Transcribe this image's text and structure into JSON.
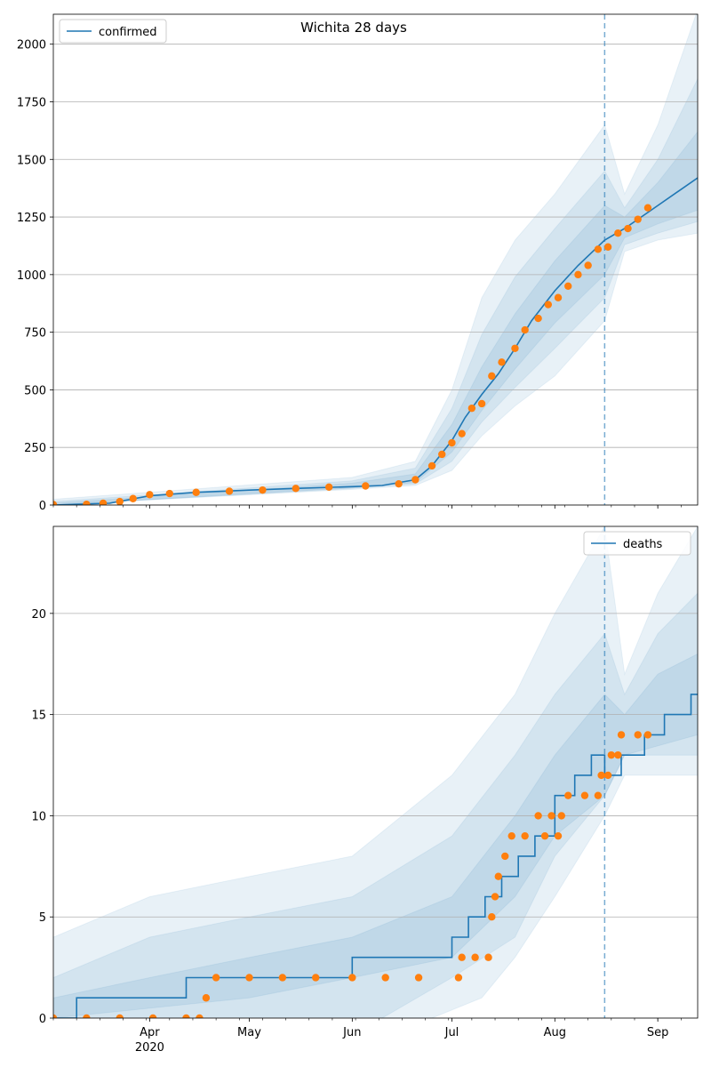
{
  "colors": {
    "model": "#1f77b4",
    "observed": "#ff7f0e",
    "grid": "#b0b0b0"
  },
  "chart_data": [
    {
      "type": "line",
      "title": "Wichita 28 days",
      "legend": {
        "label": "confirmed",
        "position": "top-left"
      },
      "xlim": [
        "2020-03-03",
        "2020-09-13"
      ],
      "ylim": [
        0,
        2130
      ],
      "yticks": [
        0,
        250,
        500,
        750,
        1000,
        1250,
        1500,
        1750,
        2000
      ],
      "xticks": [
        {
          "date": "2020-04-01",
          "label": "Apr",
          "sublabel": "2020"
        },
        {
          "date": "2020-05-01",
          "label": "May",
          "sublabel": ""
        },
        {
          "date": "2020-06-01",
          "label": "Jun",
          "sublabel": ""
        },
        {
          "date": "2020-07-01",
          "label": "Jul",
          "sublabel": ""
        },
        {
          "date": "2020-08-01",
          "label": "Aug",
          "sublabel": ""
        },
        {
          "date": "2020-09-01",
          "label": "Sep",
          "sublabel": ""
        }
      ],
      "grid": "horizontal",
      "forecast_start": "2020-08-16",
      "fit": [
        [
          "2020-03-03",
          0
        ],
        [
          "2020-03-20",
          8
        ],
        [
          "2020-04-01",
          40
        ],
        [
          "2020-04-15",
          55
        ],
        [
          "2020-05-01",
          65
        ],
        [
          "2020-05-15",
          72
        ],
        [
          "2020-06-01",
          80
        ],
        [
          "2020-06-10",
          85
        ],
        [
          "2020-06-20",
          110
        ],
        [
          "2020-06-25",
          170
        ],
        [
          "2020-07-01",
          280
        ],
        [
          "2020-07-05",
          380
        ],
        [
          "2020-07-10",
          480
        ],
        [
          "2020-07-15",
          570
        ],
        [
          "2020-07-20",
          680
        ],
        [
          "2020-07-25",
          800
        ],
        [
          "2020-08-01",
          930
        ],
        [
          "2020-08-08",
          1040
        ],
        [
          "2020-08-16",
          1150
        ],
        [
          "2020-08-22",
          1200
        ],
        [
          "2020-09-01",
          1300
        ],
        [
          "2020-09-13",
          1420
        ]
      ],
      "bands": [
        {
          "low": [
            [
              "2020-03-03",
              0
            ],
            [
              "2020-06-01",
              68
            ],
            [
              "2020-06-20",
              85
            ],
            [
              "2020-07-01",
              150
            ],
            [
              "2020-07-10",
              300
            ],
            [
              "2020-07-20",
              430
            ],
            [
              "2020-08-01",
              560
            ],
            [
              "2020-08-16",
              800
            ],
            [
              "2020-08-22",
              1100
            ],
            [
              "2020-09-01",
              1150
            ],
            [
              "2020-09-13",
              1180
            ]
          ],
          "high": [
            [
              "2020-03-03",
              25
            ],
            [
              "2020-06-01",
              120
            ],
            [
              "2020-06-20",
              190
            ],
            [
              "2020-07-01",
              500
            ],
            [
              "2020-07-10",
              900
            ],
            [
              "2020-07-20",
              1150
            ],
            [
              "2020-08-01",
              1350
            ],
            [
              "2020-08-16",
              1650
            ],
            [
              "2020-08-22",
              1350
            ],
            [
              "2020-09-01",
              1650
            ],
            [
              "2020-09-13",
              2150
            ]
          ]
        },
        {
          "low": [
            [
              "2020-03-03",
              0
            ],
            [
              "2020-06-01",
              72
            ],
            [
              "2020-06-20",
              92
            ],
            [
              "2020-07-01",
              190
            ],
            [
              "2020-07-10",
              360
            ],
            [
              "2020-07-20",
              510
            ],
            [
              "2020-08-01",
              680
            ],
            [
              "2020-08-16",
              900
            ],
            [
              "2020-08-22",
              1130
            ],
            [
              "2020-09-01",
              1180
            ],
            [
              "2020-09-13",
              1230
            ]
          ],
          "high": [
            [
              "2020-03-03",
              15
            ],
            [
              "2020-06-01",
              105
            ],
            [
              "2020-06-20",
              160
            ],
            [
              "2020-07-01",
              420
            ],
            [
              "2020-07-10",
              740
            ],
            [
              "2020-07-20",
              990
            ],
            [
              "2020-08-01",
              1200
            ],
            [
              "2020-08-16",
              1450
            ],
            [
              "2020-08-22",
              1290
            ],
            [
              "2020-09-01",
              1500
            ],
            [
              "2020-09-13",
              1850
            ]
          ]
        },
        {
          "low": [
            [
              "2020-03-03",
              0
            ],
            [
              "2020-06-01",
              75
            ],
            [
              "2020-06-20",
              98
            ],
            [
              "2020-07-01",
              230
            ],
            [
              "2020-07-10",
              410
            ],
            [
              "2020-07-20",
              590
            ],
            [
              "2020-08-01",
              790
            ],
            [
              "2020-08-16",
              1000
            ],
            [
              "2020-08-22",
              1160
            ],
            [
              "2020-09-01",
              1220
            ],
            [
              "2020-09-13",
              1280
            ]
          ],
          "high": [
            [
              "2020-03-03",
              8
            ],
            [
              "2020-06-01",
              95
            ],
            [
              "2020-06-20",
              135
            ],
            [
              "2020-07-01",
              350
            ],
            [
              "2020-07-10",
              600
            ],
            [
              "2020-07-20",
              830
            ],
            [
              "2020-08-01",
              1060
            ],
            [
              "2020-08-16",
              1300
            ],
            [
              "2020-08-22",
              1250
            ],
            [
              "2020-09-01",
              1400
            ],
            [
              "2020-09-13",
              1620
            ]
          ]
        }
      ],
      "observed": [
        [
          "2020-03-03",
          2
        ],
        [
          "2020-03-13",
          3
        ],
        [
          "2020-03-18",
          8
        ],
        [
          "2020-03-23",
          15
        ],
        [
          "2020-03-27",
          28
        ],
        [
          "2020-04-01",
          45
        ],
        [
          "2020-04-07",
          50
        ],
        [
          "2020-04-15",
          55
        ],
        [
          "2020-04-25",
          60
        ],
        [
          "2020-05-05",
          65
        ],
        [
          "2020-05-15",
          72
        ],
        [
          "2020-05-25",
          78
        ],
        [
          "2020-06-05",
          83
        ],
        [
          "2020-06-15",
          92
        ],
        [
          "2020-06-20",
          110
        ],
        [
          "2020-06-25",
          170
        ],
        [
          "2020-06-28",
          220
        ],
        [
          "2020-07-01",
          270
        ],
        [
          "2020-07-04",
          310
        ],
        [
          "2020-07-07",
          420
        ],
        [
          "2020-07-10",
          440
        ],
        [
          "2020-07-13",
          560
        ],
        [
          "2020-07-16",
          620
        ],
        [
          "2020-07-20",
          680
        ],
        [
          "2020-07-23",
          760
        ],
        [
          "2020-07-27",
          810
        ],
        [
          "2020-07-30",
          870
        ],
        [
          "2020-08-02",
          900
        ],
        [
          "2020-08-05",
          950
        ],
        [
          "2020-08-08",
          1000
        ],
        [
          "2020-08-11",
          1040
        ],
        [
          "2020-08-14",
          1110
        ],
        [
          "2020-08-17",
          1120
        ],
        [
          "2020-08-20",
          1180
        ],
        [
          "2020-08-23",
          1200
        ],
        [
          "2020-08-26",
          1240
        ],
        [
          "2020-08-29",
          1290
        ]
      ]
    },
    {
      "type": "line",
      "title": "",
      "legend": {
        "label": "deaths",
        "position": "top-right"
      },
      "xlim": [
        "2020-03-03",
        "2020-09-13"
      ],
      "ylim": [
        0,
        24.3
      ],
      "yticks": [
        0,
        5,
        10,
        15,
        20
      ],
      "xticks": [
        {
          "date": "2020-04-01",
          "label": "Apr",
          "sublabel": "2020"
        },
        {
          "date": "2020-05-01",
          "label": "May",
          "sublabel": ""
        },
        {
          "date": "2020-06-01",
          "label": "Jun",
          "sublabel": ""
        },
        {
          "date": "2020-07-01",
          "label": "Jul",
          "sublabel": ""
        },
        {
          "date": "2020-08-01",
          "label": "Aug",
          "sublabel": ""
        },
        {
          "date": "2020-09-01",
          "label": "Sep",
          "sublabel": ""
        }
      ],
      "grid": "horizontal",
      "forecast_start": "2020-08-16",
      "fit_steps": [
        [
          "2020-03-03",
          0
        ],
        [
          "2020-03-10",
          1
        ],
        [
          "2020-04-12",
          2
        ],
        [
          "2020-06-01",
          3
        ],
        [
          "2020-07-01",
          4
        ],
        [
          "2020-07-06",
          5
        ],
        [
          "2020-07-11",
          6
        ],
        [
          "2020-07-16",
          7
        ],
        [
          "2020-07-21",
          8
        ],
        [
          "2020-07-26",
          9
        ],
        [
          "2020-08-01",
          10
        ],
        [
          "2020-08-01",
          11
        ],
        [
          "2020-08-07",
          12
        ],
        [
          "2020-08-12",
          13
        ],
        [
          "2020-08-16",
          12
        ],
        [
          "2020-08-21",
          13
        ],
        [
          "2020-08-28",
          14
        ],
        [
          "2020-09-03",
          15
        ],
        [
          "2020-09-11",
          16
        ],
        [
          "2020-09-13",
          16
        ]
      ],
      "bands": [
        {
          "low": [
            [
              "2020-03-03",
              0
            ],
            [
              "2020-06-25",
              0
            ],
            [
              "2020-07-10",
              1
            ],
            [
              "2020-07-20",
              3
            ],
            [
              "2020-08-01",
              6
            ],
            [
              "2020-08-16",
              10
            ],
            [
              "2020-08-22",
              12
            ],
            [
              "2020-09-13",
              12
            ]
          ],
          "high": [
            [
              "2020-03-03",
              4
            ],
            [
              "2020-04-01",
              6
            ],
            [
              "2020-05-01",
              7
            ],
            [
              "2020-06-01",
              8
            ],
            [
              "2020-07-01",
              12
            ],
            [
              "2020-07-20",
              16
            ],
            [
              "2020-08-01",
              20
            ],
            [
              "2020-08-16",
              24.3
            ],
            [
              "2020-08-22",
              17
            ],
            [
              "2020-09-01",
              21
            ],
            [
              "2020-09-13",
              24.3
            ]
          ]
        },
        {
          "low": [
            [
              "2020-03-03",
              0
            ],
            [
              "2020-06-10",
              0
            ],
            [
              "2020-07-01",
              2
            ],
            [
              "2020-07-20",
              4
            ],
            [
              "2020-08-01",
              8
            ],
            [
              "2020-08-16",
              11
            ],
            [
              "2020-08-22",
              13
            ],
            [
              "2020-09-13",
              13
            ]
          ],
          "high": [
            [
              "2020-03-03",
              2
            ],
            [
              "2020-04-01",
              4
            ],
            [
              "2020-05-01",
              5
            ],
            [
              "2020-06-01",
              6
            ],
            [
              "2020-07-01",
              9
            ],
            [
              "2020-07-20",
              13
            ],
            [
              "2020-08-01",
              16
            ],
            [
              "2020-08-16",
              19
            ],
            [
              "2020-08-22",
              16
            ],
            [
              "2020-09-01",
              19
            ],
            [
              "2020-09-13",
              21
            ]
          ]
        },
        {
          "low": [
            [
              "2020-03-03",
              0
            ],
            [
              "2020-05-01",
              1
            ],
            [
              "2020-06-01",
              2
            ],
            [
              "2020-07-01",
              3
            ],
            [
              "2020-07-20",
              6
            ],
            [
              "2020-08-01",
              9
            ],
            [
              "2020-08-16",
              11
            ],
            [
              "2020-08-22",
              13
            ],
            [
              "2020-09-13",
              14
            ]
          ],
          "high": [
            [
              "2020-03-03",
              1
            ],
            [
              "2020-04-01",
              2
            ],
            [
              "2020-05-01",
              3
            ],
            [
              "2020-06-01",
              4
            ],
            [
              "2020-07-01",
              6
            ],
            [
              "2020-07-20",
              10
            ],
            [
              "2020-08-01",
              13
            ],
            [
              "2020-08-16",
              16
            ],
            [
              "2020-08-22",
              15
            ],
            [
              "2020-09-01",
              17
            ],
            [
              "2020-09-13",
              18
            ]
          ]
        }
      ],
      "observed": [
        [
          "2020-03-03",
          0
        ],
        [
          "2020-03-13",
          0
        ],
        [
          "2020-03-23",
          0
        ],
        [
          "2020-04-02",
          0
        ],
        [
          "2020-04-12",
          0
        ],
        [
          "2020-04-16",
          0
        ],
        [
          "2020-04-18",
          1
        ],
        [
          "2020-04-21",
          2
        ],
        [
          "2020-05-01",
          2
        ],
        [
          "2020-05-11",
          2
        ],
        [
          "2020-05-21",
          2
        ],
        [
          "2020-06-01",
          2
        ],
        [
          "2020-06-11",
          2
        ],
        [
          "2020-06-21",
          2
        ],
        [
          "2020-07-03",
          2
        ],
        [
          "2020-07-04",
          3
        ],
        [
          "2020-07-08",
          3
        ],
        [
          "2020-07-12",
          3
        ],
        [
          "2020-07-13",
          5
        ],
        [
          "2020-07-14",
          6
        ],
        [
          "2020-07-15",
          7
        ],
        [
          "2020-07-17",
          8
        ],
        [
          "2020-07-19",
          9
        ],
        [
          "2020-07-23",
          9
        ],
        [
          "2020-07-27",
          10
        ],
        [
          "2020-07-29",
          9
        ],
        [
          "2020-07-31",
          10
        ],
        [
          "2020-08-02",
          9
        ],
        [
          "2020-08-03",
          10
        ],
        [
          "2020-08-05",
          11
        ],
        [
          "2020-08-10",
          11
        ],
        [
          "2020-08-14",
          11
        ],
        [
          "2020-08-15",
          12
        ],
        [
          "2020-08-17",
          12
        ],
        [
          "2020-08-18",
          13
        ],
        [
          "2020-08-20",
          13
        ],
        [
          "2020-08-21",
          14
        ],
        [
          "2020-08-26",
          14
        ],
        [
          "2020-08-29",
          14
        ]
      ]
    }
  ]
}
